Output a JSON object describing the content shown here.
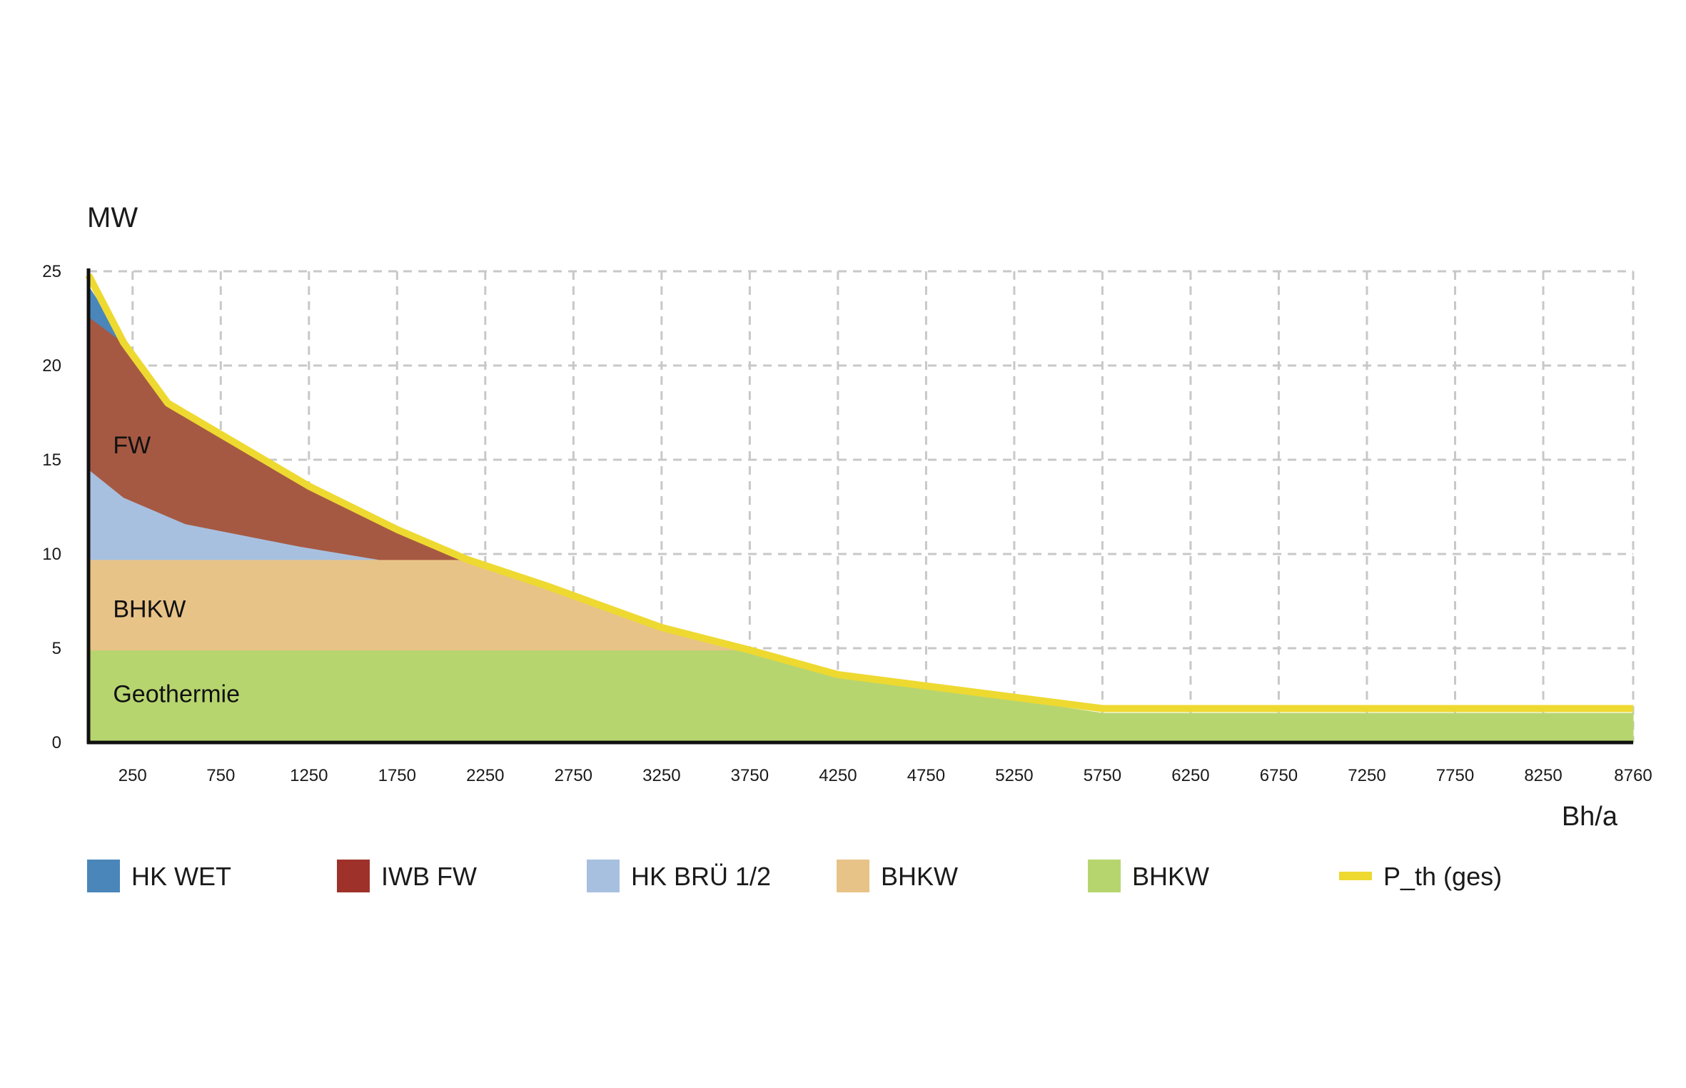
{
  "chart_data": {
    "type": "area",
    "ylabel": "MW",
    "xlabel": "Bh/a",
    "ylim": [
      0,
      25
    ],
    "xlim": [
      0,
      8760
    ],
    "yticks": [
      0,
      5,
      10,
      15,
      20,
      25
    ],
    "xticks": [
      250,
      750,
      1250,
      1750,
      2250,
      2750,
      3250,
      3750,
      4250,
      4750,
      5250,
      5750,
      6250,
      6750,
      7250,
      7750,
      8250,
      8760
    ],
    "grid": true,
    "legend_position": "bottom",
    "area_labels": [
      {
        "text": "FW",
        "x": 220,
        "y": 15.8
      },
      {
        "text": "BHKW",
        "x": 220,
        "y": 7.1
      },
      {
        "text": "Geothermie",
        "x": 220,
        "y": 2.6
      }
    ],
    "series": [
      {
        "name": "BHKW",
        "color": "#b7d56f",
        "kind": "area",
        "points": [
          [
            0,
            4.9
          ],
          [
            3700,
            4.9
          ],
          [
            4300,
            3.6
          ],
          [
            5750,
            1.55
          ],
          [
            8760,
            1.55
          ]
        ]
      },
      {
        "name": "BHKW",
        "color": "#e8c387",
        "kind": "area",
        "points": [
          [
            0,
            9.7
          ],
          [
            2100,
            9.7
          ],
          [
            2600,
            8.3
          ],
          [
            3250,
            6.1
          ],
          [
            3750,
            4.9
          ]
        ]
      },
      {
        "name": "HK BRÜ 1/2",
        "color": "#a8c0df",
        "kind": "area",
        "points": [
          [
            0,
            14.5
          ],
          [
            200,
            13.0
          ],
          [
            550,
            11.6
          ],
          [
            1200,
            10.4
          ],
          [
            1650,
            9.7
          ]
        ]
      },
      {
        "name": "IWB FW",
        "color": "#a65942",
        "kind": "area",
        "points": [
          [
            0,
            22.6
          ],
          [
            200,
            21.2
          ],
          [
            450,
            18.0
          ],
          [
            1250,
            13.6
          ],
          [
            1750,
            11.3
          ],
          [
            2150,
            9.7
          ]
        ]
      },
      {
        "name": "HK WET",
        "color": "#4a86ba",
        "kind": "area",
        "points": [
          [
            0,
            24.2
          ],
          [
            180,
            21.6
          ]
        ]
      },
      {
        "name": "P_th (ges)",
        "color": "#eed931",
        "kind": "line",
        "points": [
          [
            0,
            24.8
          ],
          [
            200,
            21.2
          ],
          [
            450,
            18.0
          ],
          [
            1250,
            13.6
          ],
          [
            1750,
            11.3
          ],
          [
            2150,
            9.7
          ],
          [
            2600,
            8.3
          ],
          [
            3250,
            6.1
          ],
          [
            3750,
            4.9
          ],
          [
            4250,
            3.6
          ],
          [
            5750,
            1.8
          ],
          [
            8760,
            1.8
          ]
        ]
      }
    ]
  },
  "legend": [
    {
      "label": "HK WET",
      "color": "#4a86ba",
      "kind": "box"
    },
    {
      "label": "IWB FW",
      "color": "#9e322b",
      "kind": "box"
    },
    {
      "label": "HK BRÜ 1/2",
      "color": "#a8c0df",
      "kind": "box"
    },
    {
      "label": "BHKW",
      "color": "#e8c387",
      "kind": "box"
    },
    {
      "label": "BHKW",
      "color": "#b7d56f",
      "kind": "box"
    },
    {
      "label": "P_th (ges)",
      "color": "#eed931",
      "kind": "line"
    }
  ]
}
